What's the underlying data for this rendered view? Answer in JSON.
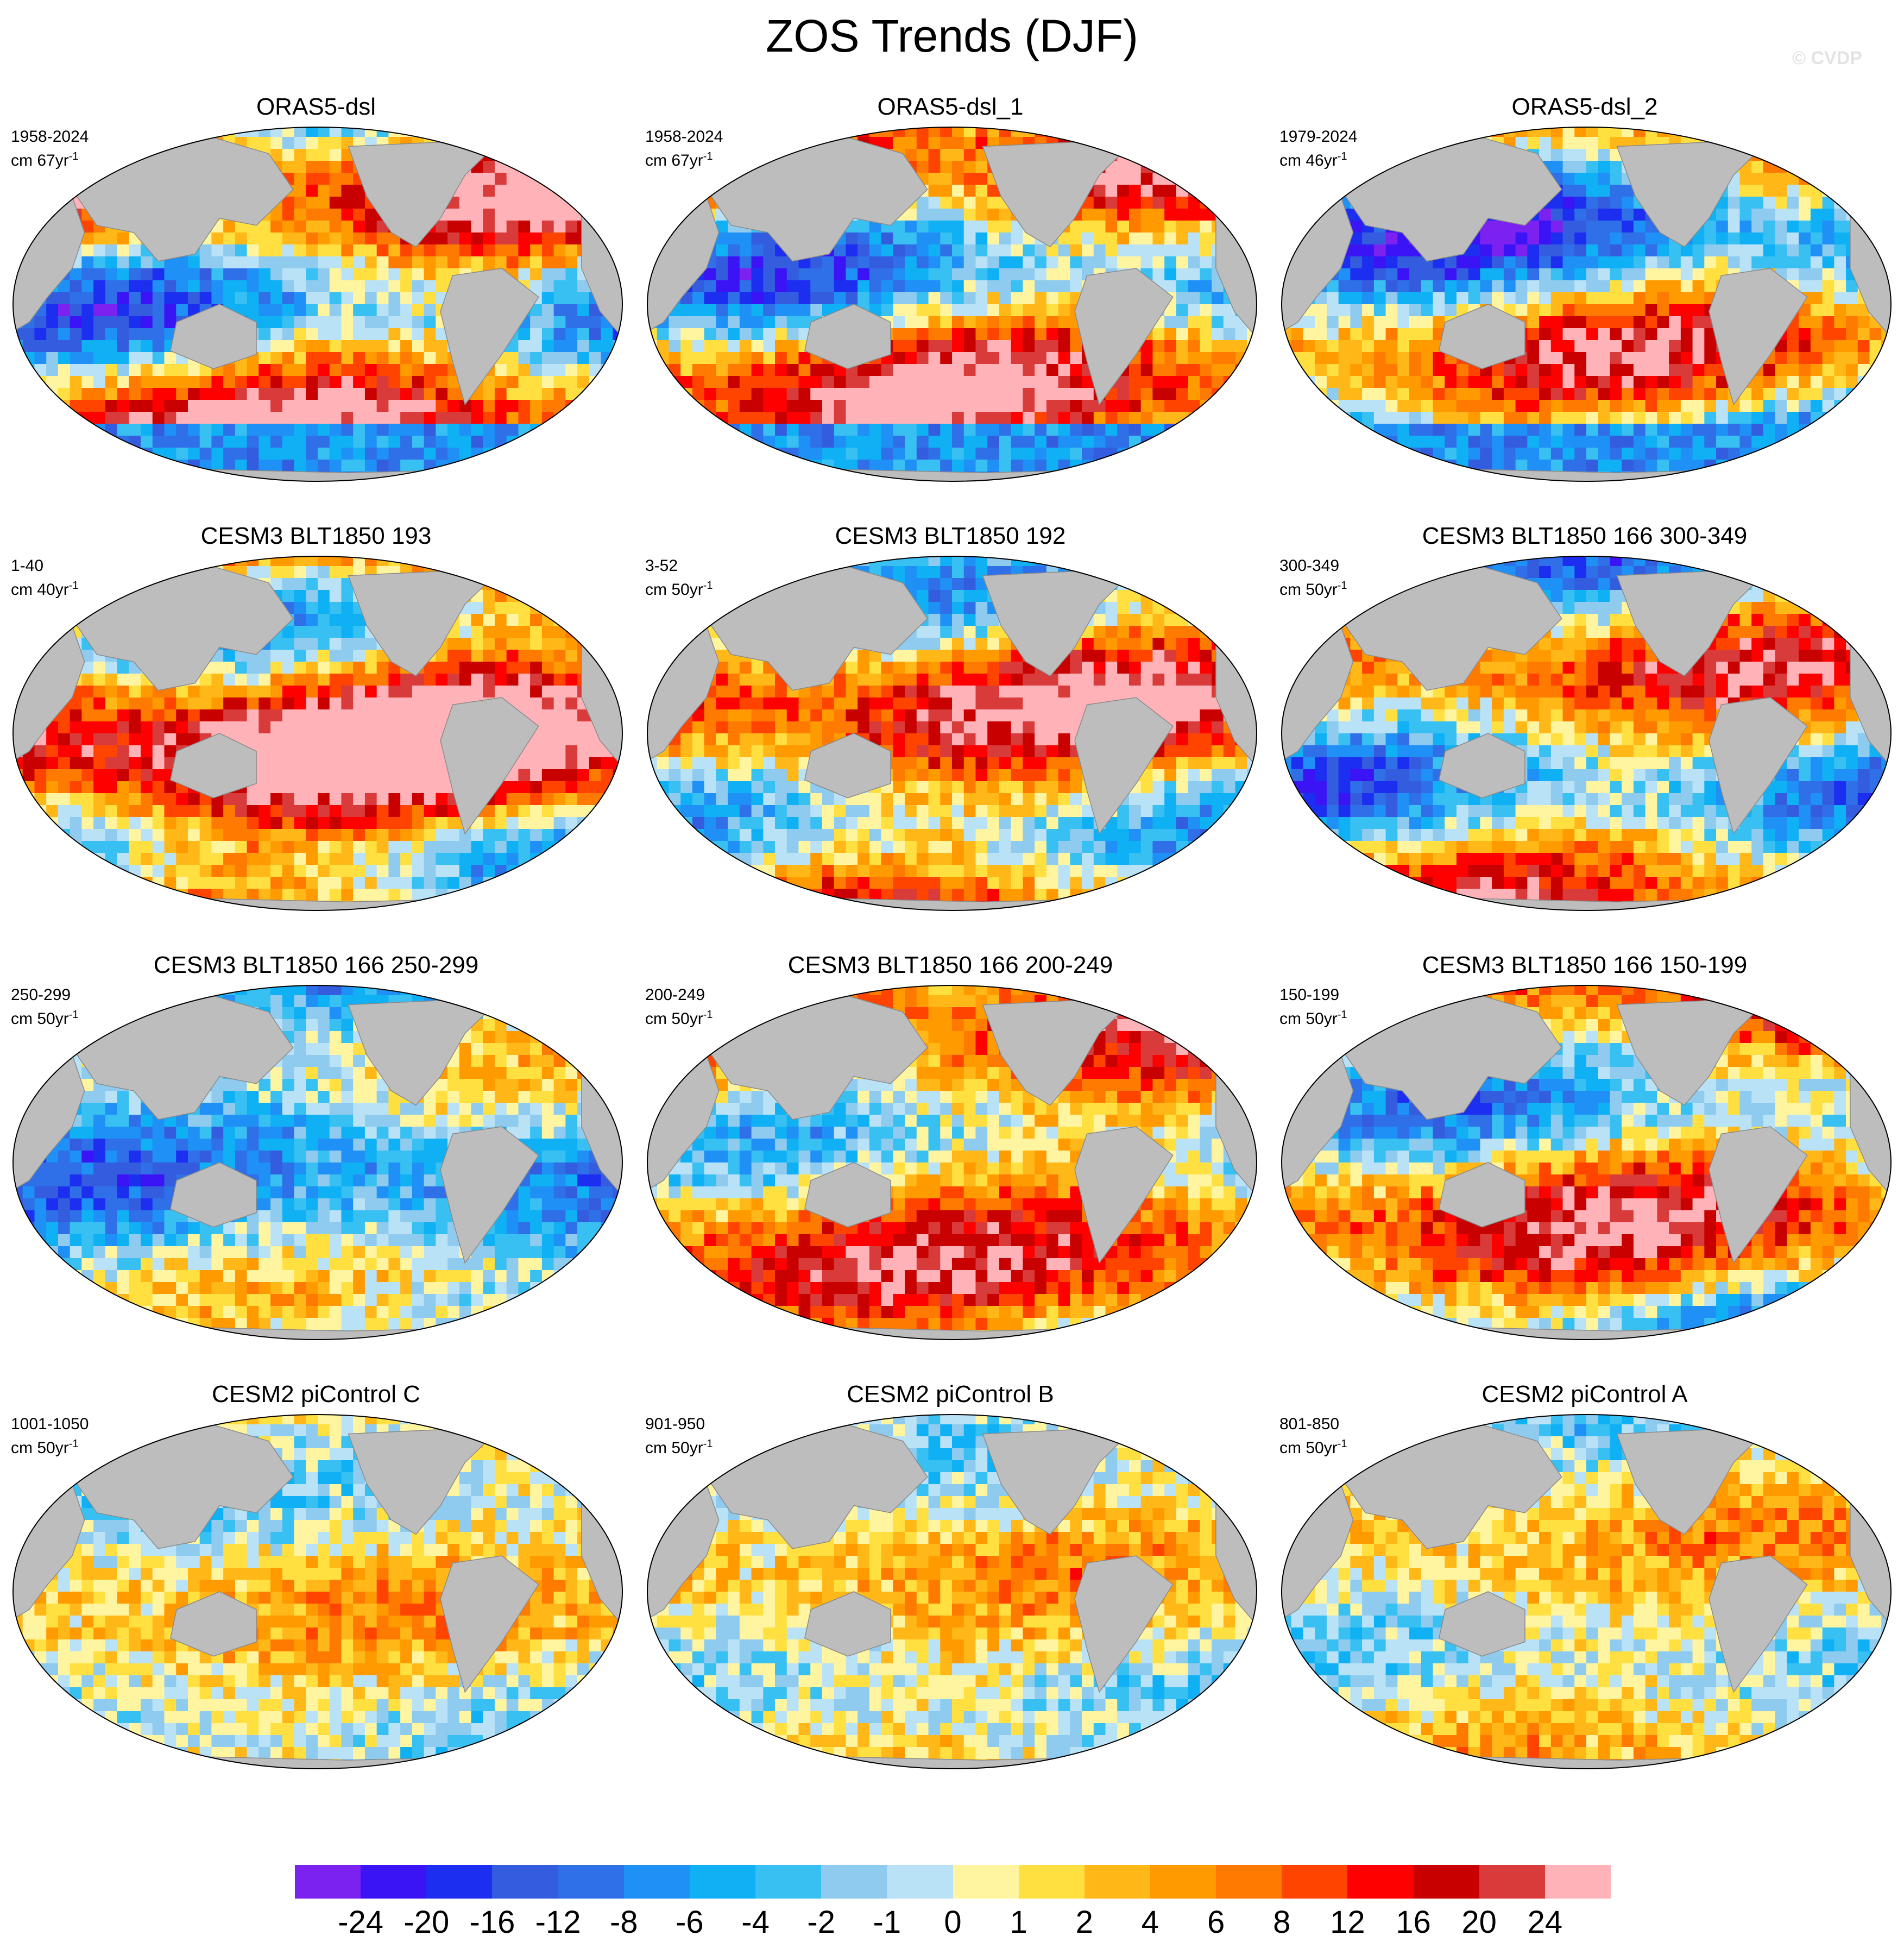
{
  "figure": {
    "title": "ZOS Trends (DJF)",
    "watermark": "© CVDP"
  },
  "chart_data": {
    "type": "heatmap",
    "variable": "ZOS",
    "season": "DJF",
    "projection": "Robinson (global map panels)",
    "panels": [
      {
        "title": "ORAS5-dsl",
        "period": "1958-2024",
        "units": "cm 67yr",
        "exponent": "-1",
        "pattern": "ORAS5 broad positive Pacific/Atlantic trends, strong negative Southern Ocean"
      },
      {
        "title": "ORAS5-dsl_1",
        "period": "1958-2024",
        "units": "cm 67yr",
        "exponent": "-1",
        "pattern": "ORAS5 broad positive Pacific/Atlantic trends, strong negative Southern Ocean"
      },
      {
        "title": "ORAS5-dsl_2",
        "period": "1979-2024",
        "units": "cm 46yr",
        "exponent": "-1",
        "pattern": "ORAS5 negative central Pacific, positive western boundaries"
      },
      {
        "title": "CESM3 BLT1850 193",
        "period": "1-40",
        "units": "cm 40yr",
        "exponent": "-1",
        "pattern": "strong positive Pacific, negative Atlantic"
      },
      {
        "title": "CESM3 BLT1850 192",
        "period": "3-52",
        "units": "cm 50yr",
        "exponent": "-1",
        "pattern": "positive Pacific bands, negative Atlantic"
      },
      {
        "title": "CESM3 BLT1850 166 300-349",
        "period": "300-349",
        "units": "cm 50yr",
        "exponent": "-1",
        "pattern": "mixed, negative Indian Ocean"
      },
      {
        "title": "CESM3 BLT1850 166 250-299",
        "period": "250-299",
        "units": "cm 50yr",
        "exponent": "-1",
        "pattern": "mostly weak negative"
      },
      {
        "title": "CESM3 BLT1850 166 200-249",
        "period": "200-249",
        "units": "cm 50yr",
        "exponent": "-1",
        "pattern": "mostly positive"
      },
      {
        "title": "CESM3 BLT1850 166 150-199",
        "period": "150-199",
        "units": "cm 50yr",
        "exponent": "-1",
        "pattern": "positive Atlantic, mixed Pacific"
      },
      {
        "title": "CESM2 piControl C",
        "period": "1001-1050",
        "units": "cm 50yr",
        "exponent": "-1",
        "pattern": "weak mixed"
      },
      {
        "title": "CESM2 piControl B",
        "period": "901-950",
        "units": "cm 50yr",
        "exponent": "-1",
        "pattern": "weak mixed"
      },
      {
        "title": "CESM2 piControl A",
        "period": "801-850",
        "units": "cm 50yr",
        "exponent": "-1",
        "pattern": "weak mixed"
      }
    ],
    "colorbar": {
      "levels": [
        "-24",
        "-20",
        "-16",
        "-12",
        "-8",
        "-6",
        "-4",
        "-2",
        "-1",
        "0",
        "1",
        "2",
        "4",
        "6",
        "8",
        "12",
        "16",
        "20",
        "24"
      ],
      "colors": [
        "#7b22f0",
        "#3a14f5",
        "#1c2ef0",
        "#345cde",
        "#2f6fe8",
        "#1f90f5",
        "#10b0f5",
        "#38c0f2",
        "#8ecbee",
        "#b9e2f7",
        "#fff5a0",
        "#ffe040",
        "#ffb818",
        "#ff9a00",
        "#ff7a00",
        "#ff4400",
        "#ff0000",
        "#c80000",
        "#d93a3a",
        "#ffb3b8"
      ]
    },
    "map_colors": {
      "land": "#bdbdbd",
      "ice": "#ffffff",
      "outline": "#000000"
    }
  }
}
